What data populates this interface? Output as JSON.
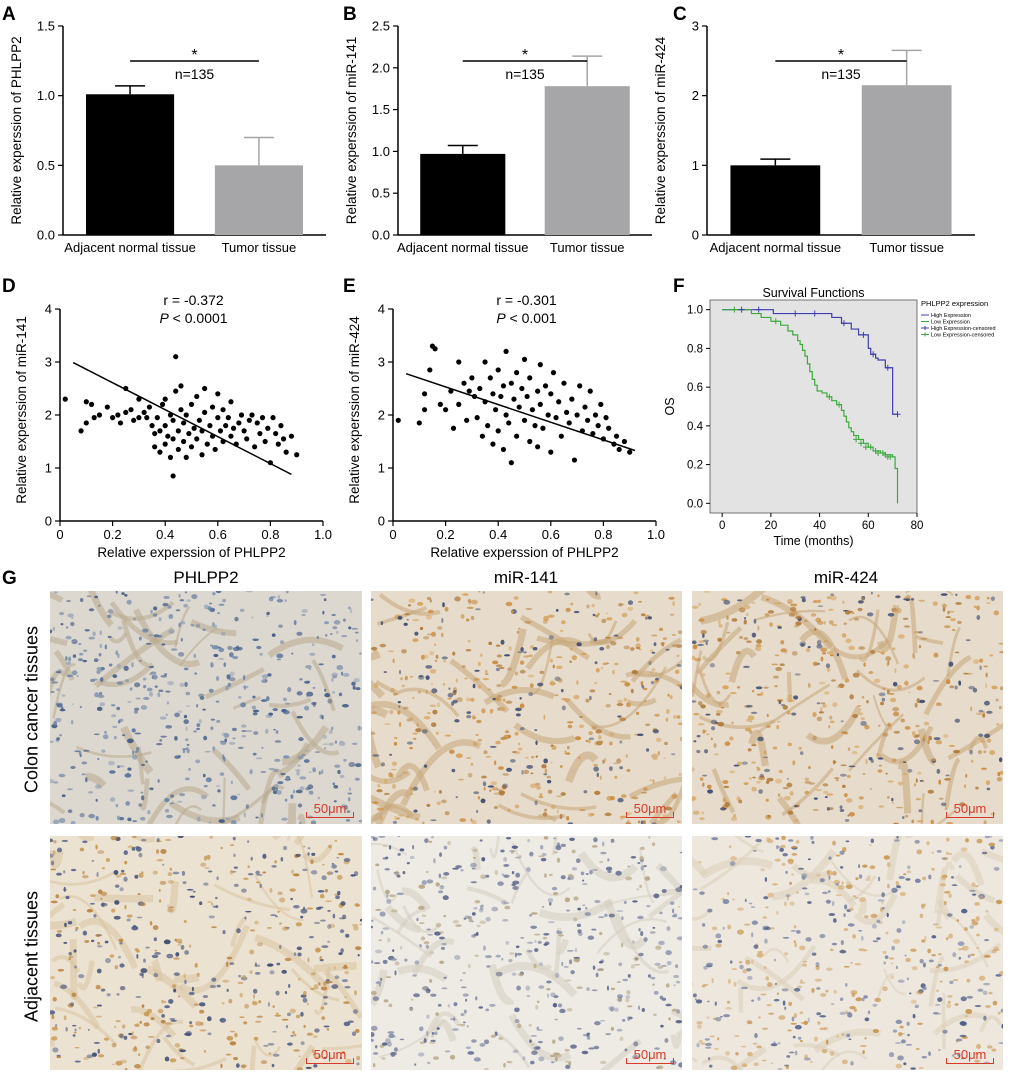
{
  "panel_labels": {
    "A": "A",
    "B": "B",
    "C": "C",
    "D": "D",
    "E": "E",
    "F": "F",
    "G": "G"
  },
  "chart_data": [
    {
      "id": "A",
      "type": "bar",
      "categories": [
        "Adjacent normal tissue",
        "Tumor  tissue"
      ],
      "values": [
        1.01,
        0.5
      ],
      "errors": [
        0.06,
        0.2
      ],
      "ylabel": "Relative experssion of PHLPP2",
      "xlabel": "",
      "ylim": [
        0,
        1.5
      ],
      "yticks": [
        0.0,
        0.5,
        1.0,
        1.5
      ],
      "annotation_star": "*",
      "annotation_n": "n=135",
      "colors": [
        "#000000",
        "#a6a6a8"
      ]
    },
    {
      "id": "B",
      "type": "bar",
      "categories": [
        "Adjacent normal tissue",
        "Tumor  tissue"
      ],
      "values": [
        0.97,
        1.78
      ],
      "errors": [
        0.1,
        0.36
      ],
      "ylabel": "Relative experssion of miR-141",
      "xlabel": "",
      "ylim": [
        0,
        2.5
      ],
      "yticks": [
        0.0,
        0.5,
        1.0,
        1.5,
        2.0,
        2.5
      ],
      "annotation_star": "*",
      "annotation_n": "n=135",
      "colors": [
        "#000000",
        "#a6a6a8"
      ]
    },
    {
      "id": "C",
      "type": "bar",
      "categories": [
        "Adjacent normal tissue",
        "Tumor  tissue"
      ],
      "values": [
        1.0,
        2.15
      ],
      "errors": [
        0.09,
        0.5
      ],
      "ylabel": "Relative experssion of miR-424",
      "xlabel": "",
      "ylim": [
        0,
        3
      ],
      "yticks": [
        0,
        1,
        2,
        3
      ],
      "annotation_star": "*",
      "annotation_n": "n=135",
      "colors": [
        "#000000",
        "#a6a6a8"
      ]
    },
    {
      "id": "D",
      "type": "scatter",
      "xlabel": "Relative experssion of PHLPP2",
      "ylabel": "Relative experssion of miR-141",
      "xlim": [
        0,
        1
      ],
      "ylim": [
        0,
        4
      ],
      "xticks": [
        0,
        0.2,
        0.4,
        0.6,
        0.8,
        1.0
      ],
      "yticks": [
        0,
        1,
        2,
        3,
        4
      ],
      "annotation_r": "r = -0.372",
      "annotation_p_label": "P",
      "annotation_p_value": "< 0.0001",
      "fit_line": [
        [
          0.05,
          2.99
        ],
        [
          0.88,
          0.88
        ]
      ],
      "points": [
        [
          0.02,
          2.3
        ],
        [
          0.08,
          1.7
        ],
        [
          0.1,
          1.85
        ],
        [
          0.1,
          2.25
        ],
        [
          0.12,
          2.2
        ],
        [
          0.13,
          1.95
        ],
        [
          0.15,
          2.0
        ],
        [
          0.18,
          2.15
        ],
        [
          0.2,
          1.95
        ],
        [
          0.22,
          2.0
        ],
        [
          0.23,
          1.85
        ],
        [
          0.25,
          2.5
        ],
        [
          0.25,
          2.05
        ],
        [
          0.27,
          2.1
        ],
        [
          0.28,
          1.9
        ],
        [
          0.3,
          1.95
        ],
        [
          0.3,
          2.3
        ],
        [
          0.32,
          2.05
        ],
        [
          0.33,
          1.95
        ],
        [
          0.34,
          2.15
        ],
        [
          0.35,
          1.8
        ],
        [
          0.36,
          1.4
        ],
        [
          0.36,
          1.65
        ],
        [
          0.37,
          1.95
        ],
        [
          0.38,
          1.3
        ],
        [
          0.38,
          1.7
        ],
        [
          0.39,
          2.2
        ],
        [
          0.4,
          1.45
        ],
        [
          0.4,
          1.8
        ],
        [
          0.4,
          2.3
        ],
        [
          0.41,
          1.6
        ],
        [
          0.42,
          1.2
        ],
        [
          0.42,
          2.0
        ],
        [
          0.43,
          0.85
        ],
        [
          0.43,
          1.55
        ],
        [
          0.43,
          1.9
        ],
        [
          0.44,
          2.45
        ],
        [
          0.44,
          3.1
        ],
        [
          0.45,
          1.35
        ],
        [
          0.45,
          1.7
        ],
        [
          0.46,
          2.1
        ],
        [
          0.46,
          2.55
        ],
        [
          0.47,
          1.5
        ],
        [
          0.47,
          1.85
        ],
        [
          0.48,
          1.2
        ],
        [
          0.48,
          2.0
        ],
        [
          0.49,
          1.65
        ],
        [
          0.5,
          1.4
        ],
        [
          0.5,
          2.2
        ],
        [
          0.51,
          1.75
        ],
        [
          0.52,
          1.55
        ],
        [
          0.52,
          2.35
        ],
        [
          0.53,
          1.9
        ],
        [
          0.54,
          1.25
        ],
        [
          0.54,
          1.7
        ],
        [
          0.55,
          2.05
        ],
        [
          0.55,
          2.5
        ],
        [
          0.56,
          1.45
        ],
        [
          0.57,
          1.8
        ],
        [
          0.58,
          1.6
        ],
        [
          0.58,
          2.15
        ],
        [
          0.59,
          1.35
        ],
        [
          0.6,
          1.95
        ],
        [
          0.6,
          2.4
        ],
        [
          0.61,
          1.7
        ],
        [
          0.62,
          1.5
        ],
        [
          0.62,
          2.1
        ],
        [
          0.63,
          1.8
        ],
        [
          0.64,
          1.95
        ],
        [
          0.65,
          1.6
        ],
        [
          0.65,
          2.25
        ],
        [
          0.66,
          1.75
        ],
        [
          0.67,
          1.45
        ],
        [
          0.68,
          1.85
        ],
        [
          0.69,
          2.0
        ],
        [
          0.7,
          1.7
        ],
        [
          0.71,
          1.55
        ],
        [
          0.72,
          1.9
        ],
        [
          0.73,
          2.0
        ],
        [
          0.74,
          1.4
        ],
        [
          0.75,
          1.85
        ],
        [
          0.76,
          1.65
        ],
        [
          0.77,
          1.95
        ],
        [
          0.78,
          1.5
        ],
        [
          0.79,
          1.75
        ],
        [
          0.8,
          1.1
        ],
        [
          0.81,
          1.95
        ],
        [
          0.82,
          1.65
        ],
        [
          0.83,
          1.45
        ],
        [
          0.84,
          1.8
        ],
        [
          0.85,
          1.55
        ],
        [
          0.86,
          1.3
        ],
        [
          0.88,
          1.6
        ],
        [
          0.9,
          1.25
        ]
      ]
    },
    {
      "id": "E",
      "type": "scatter",
      "xlabel": "Relative experssion of PHLPP2",
      "ylabel": "Relative experssion of miR-424",
      "xlim": [
        0,
        1
      ],
      "ylim": [
        0,
        4
      ],
      "xticks": [
        0,
        0.2,
        0.4,
        0.6,
        0.8,
        1.0
      ],
      "yticks": [
        0,
        1,
        2,
        3,
        4
      ],
      "annotation_r": "r = -0.301",
      "annotation_p_label": "P",
      "annotation_p_value": "< 0.001",
      "fit_line": [
        [
          0.05,
          2.78
        ],
        [
          0.92,
          1.33
        ]
      ],
      "points": [
        [
          0.02,
          1.9
        ],
        [
          0.1,
          1.85
        ],
        [
          0.12,
          2.4
        ],
        [
          0.12,
          2.1
        ],
        [
          0.14,
          2.85
        ],
        [
          0.15,
          3.3
        ],
        [
          0.16,
          3.25
        ],
        [
          0.18,
          2.2
        ],
        [
          0.2,
          2.1
        ],
        [
          0.22,
          2.45
        ],
        [
          0.23,
          1.75
        ],
        [
          0.25,
          2.2
        ],
        [
          0.25,
          3.0
        ],
        [
          0.27,
          2.6
        ],
        [
          0.28,
          1.9
        ],
        [
          0.29,
          2.45
        ],
        [
          0.3,
          2.7
        ],
        [
          0.31,
          2.35
        ],
        [
          0.32,
          1.95
        ],
        [
          0.33,
          2.5
        ],
        [
          0.34,
          1.6
        ],
        [
          0.35,
          2.25
        ],
        [
          0.35,
          3.0
        ],
        [
          0.36,
          1.8
        ],
        [
          0.37,
          2.7
        ],
        [
          0.38,
          2.4
        ],
        [
          0.38,
          1.45
        ],
        [
          0.39,
          2.1
        ],
        [
          0.4,
          2.85
        ],
        [
          0.4,
          1.7
        ],
        [
          0.41,
          2.35
        ],
        [
          0.42,
          2.55
        ],
        [
          0.42,
          1.35
        ],
        [
          0.43,
          2.0
        ],
        [
          0.43,
          3.2
        ],
        [
          0.44,
          1.85
        ],
        [
          0.45,
          2.6
        ],
        [
          0.45,
          1.1
        ],
        [
          0.46,
          2.3
        ],
        [
          0.47,
          2.8
        ],
        [
          0.47,
          1.6
        ],
        [
          0.48,
          2.15
        ],
        [
          0.49,
          2.5
        ],
        [
          0.5,
          1.9
        ],
        [
          0.5,
          3.05
        ],
        [
          0.51,
          2.35
        ],
        [
          0.52,
          1.5
        ],
        [
          0.52,
          2.7
        ],
        [
          0.53,
          2.1
        ],
        [
          0.54,
          1.8
        ],
        [
          0.55,
          2.45
        ],
        [
          0.55,
          1.4
        ],
        [
          0.56,
          2.2
        ],
        [
          0.56,
          2.95
        ],
        [
          0.57,
          1.75
        ],
        [
          0.58,
          2.55
        ],
        [
          0.59,
          2.0
        ],
        [
          0.6,
          1.3
        ],
        [
          0.6,
          2.4
        ],
        [
          0.61,
          2.8
        ],
        [
          0.62,
          1.95
        ],
        [
          0.63,
          2.25
        ],
        [
          0.64,
          1.6
        ],
        [
          0.65,
          2.6
        ],
        [
          0.66,
          2.05
        ],
        [
          0.67,
          1.85
        ],
        [
          0.68,
          2.3
        ],
        [
          0.69,
          1.15
        ],
        [
          0.7,
          2.0
        ],
        [
          0.71,
          2.55
        ],
        [
          0.72,
          1.7
        ],
        [
          0.73,
          2.15
        ],
        [
          0.74,
          1.9
        ],
        [
          0.75,
          2.45
        ],
        [
          0.76,
          1.65
        ],
        [
          0.77,
          2.0
        ],
        [
          0.78,
          1.8
        ],
        [
          0.79,
          2.2
        ],
        [
          0.8,
          1.55
        ],
        [
          0.81,
          1.95
        ],
        [
          0.82,
          1.75
        ],
        [
          0.84,
          1.45
        ],
        [
          0.85,
          1.6
        ],
        [
          0.86,
          1.35
        ],
        [
          0.88,
          1.5
        ],
        [
          0.9,
          1.3
        ]
      ]
    },
    {
      "id": "F",
      "type": "line",
      "title": "Survival Functions",
      "xlabel": "Time (months)",
      "ylabel": "OS",
      "xlim": [
        -5,
        80
      ],
      "ylim": [
        -0.05,
        1.05
      ],
      "xticks": [
        0,
        20,
        40,
        60,
        80
      ],
      "yticks": [
        0.0,
        0.2,
        0.4,
        0.6,
        0.8,
        1.0
      ],
      "legend_title": "PHLPP2 expression",
      "legend_position": "top-right",
      "background": "#e3e3e3",
      "series": [
        {
          "name": "High Expression",
          "color": "#3e3eb0",
          "steps": [
            [
              0,
              1.0
            ],
            [
              20,
              1.0
            ],
            [
              21,
              0.98
            ],
            [
              44,
              0.98
            ],
            [
              45,
              0.96
            ],
            [
              48,
              0.96
            ],
            [
              49,
              0.93
            ],
            [
              52,
              0.93
            ],
            [
              53,
              0.9
            ],
            [
              55,
              0.9
            ],
            [
              56,
              0.87
            ],
            [
              59,
              0.87
            ],
            [
              60,
              0.8
            ],
            [
              61,
              0.77
            ],
            [
              63,
              0.75
            ],
            [
              64,
              0.74
            ],
            [
              66,
              0.74
            ],
            [
              67,
              0.7
            ],
            [
              69,
              0.7
            ],
            [
              70,
              0.46
            ],
            [
              72,
              0.46
            ]
          ]
        },
        {
          "name": "Low Expression",
          "color": "#3caa3c",
          "steps": [
            [
              0,
              1.0
            ],
            [
              10,
              1.0
            ],
            [
              12,
              0.98
            ],
            [
              16,
              0.96
            ],
            [
              20,
              0.94
            ],
            [
              24,
              0.92
            ],
            [
              27,
              0.89
            ],
            [
              29,
              0.87
            ],
            [
              31,
              0.84
            ],
            [
              32,
              0.82
            ],
            [
              33,
              0.79
            ],
            [
              34,
              0.76
            ],
            [
              35,
              0.72
            ],
            [
              36,
              0.68
            ],
            [
              37,
              0.64
            ],
            [
              38,
              0.61
            ],
            [
              39,
              0.58
            ],
            [
              41,
              0.57
            ],
            [
              43,
              0.55
            ],
            [
              45,
              0.53
            ],
            [
              47,
              0.51
            ],
            [
              49,
              0.48
            ],
            [
              50,
              0.45
            ],
            [
              51,
              0.42
            ],
            [
              52,
              0.39
            ],
            [
              53,
              0.37
            ],
            [
              54,
              0.35
            ],
            [
              56,
              0.33
            ],
            [
              58,
              0.31
            ],
            [
              60,
              0.29
            ],
            [
              62,
              0.27
            ],
            [
              65,
              0.26
            ],
            [
              67,
              0.25
            ],
            [
              70,
              0.24
            ],
            [
              71,
              0.18
            ],
            [
              72,
              0.0
            ]
          ]
        },
        {
          "name": "High Expression-censored",
          "color": "#3e3eb0",
          "points": [
            [
              8,
              1.0
            ],
            [
              15,
              1.0
            ],
            [
              30,
              0.98
            ],
            [
              38,
              0.98
            ],
            [
              50,
              0.93
            ],
            [
              58,
              0.87
            ],
            [
              62,
              0.77
            ],
            [
              68,
              0.7
            ],
            [
              72,
              0.46
            ]
          ]
        },
        {
          "name": "Low Expression-censored",
          "color": "#3caa3c",
          "points": [
            [
              5,
              1.0
            ],
            [
              22,
              0.94
            ],
            [
              44,
              0.55
            ],
            [
              48,
              0.51
            ],
            [
              55,
              0.33
            ],
            [
              57,
              0.31
            ],
            [
              59,
              0.29
            ],
            [
              61,
              0.29
            ],
            [
              63,
              0.27
            ],
            [
              64,
              0.26
            ],
            [
              66,
              0.26
            ],
            [
              67,
              0.25
            ],
            [
              68,
              0.24
            ],
            [
              69,
              0.24
            ]
          ]
        }
      ]
    }
  ],
  "panelG": {
    "columns": [
      "PHLPP2",
      "miR-141",
      "miR-424"
    ],
    "rows": [
      "Colon cancer tissues",
      "Adjacent tissues"
    ],
    "scale": "50μm"
  }
}
